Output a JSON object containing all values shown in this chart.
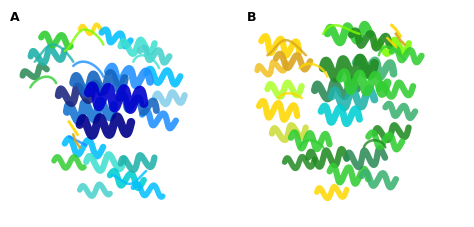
{
  "figsize": [
    4.74,
    2.28
  ],
  "dpi": 100,
  "background_color": "#ffffff",
  "label_A": "A",
  "label_B": "B",
  "label_fontsize": 9,
  "label_fontweight": "bold"
}
